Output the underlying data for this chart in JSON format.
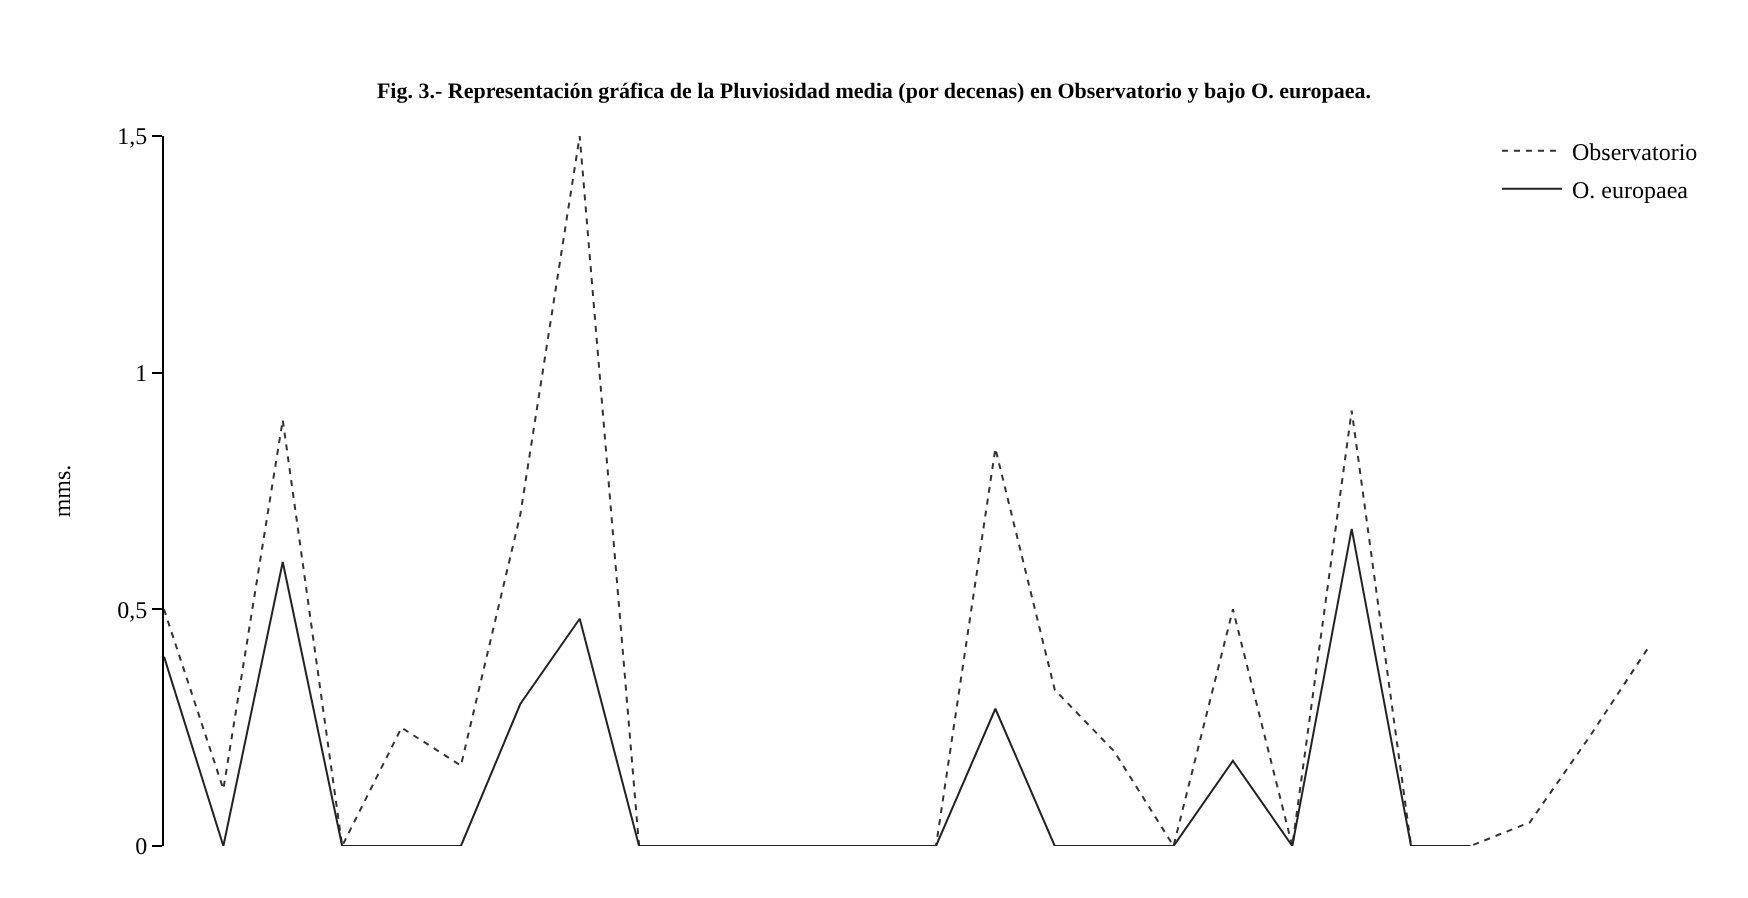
{
  "chart_data": {
    "type": "line",
    "title": "Fig. 3.- Representación gráfica de la Pluviosidad media (por decenas) en Observatorio y bajo O. europaea.",
    "ylabel": "mms.",
    "categories": [
      null,
      null,
      null,
      null,
      null,
      null,
      null,
      null,
      null,
      null,
      null,
      null,
      null,
      null,
      null,
      null,
      null,
      null,
      null,
      null,
      null,
      null,
      null,
      null,
      null,
      null
    ],
    "series": [
      {
        "name": "Observatorio",
        "color": "#333333",
        "line_style": "dotted",
        "values": [
          0.5,
          0.12,
          0.9,
          0,
          0.25,
          0.17,
          0.7,
          1.5,
          0,
          0,
          0,
          0,
          0,
          0,
          0.84,
          0.33,
          0.2,
          0,
          0.5,
          0,
          0.92,
          0,
          0,
          0.05,
          0.23,
          0.42
        ]
      },
      {
        "name": "O. europaea",
        "color": "#222222",
        "line_style": "solid",
        "values": [
          0.4,
          0,
          0.6,
          0,
          0,
          0,
          0.3,
          0.48,
          0,
          0,
          0,
          0,
          0,
          0,
          0.29,
          0,
          0,
          0,
          0.18,
          0,
          0.67,
          0,
          0,
          null,
          null,
          null
        ]
      }
    ],
    "ylim": [
      0,
      1.5
    ],
    "yticks": [
      0,
      {
        "value": 0.5,
        "label": "0,5"
      },
      1,
      {
        "value": 1.5,
        "label": "1,5"
      }
    ],
    "grid": false,
    "legend": "top right",
    "marker": "none",
    "tick_labels": "y"
  }
}
